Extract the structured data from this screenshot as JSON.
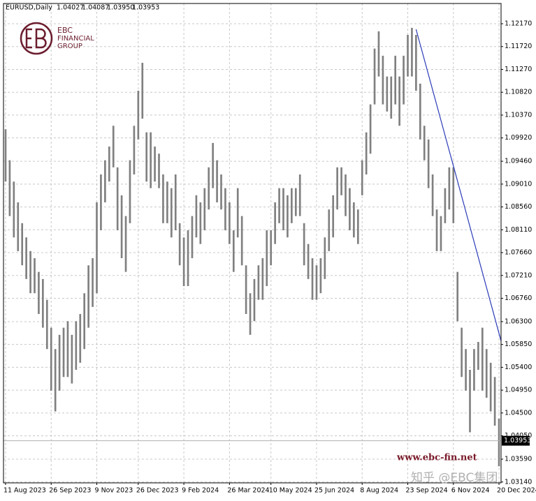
{
  "chart_data": {
    "type": "ohlc",
    "symbol": "EURUSD,Daily",
    "last": {
      "open": 1.04027,
      "high": 1.04087,
      "low": {
        "value": 1.0395,
        "label": "1.03950"
      },
      "close": 1.03953
    },
    "logo": {
      "line1": "EBC",
      "line2": "FINANCIAL",
      "line3": "GROUP"
    },
    "watermark": "www.ebc-fin.net",
    "credit": "知乎 @EBC集团",
    "color": "#808080",
    "trendline_color": "#2b3bb8",
    "grid": true,
    "categories": [
      "11 Aug 2023",
      null,
      null,
      null,
      null,
      null,
      null,
      null,
      null,
      null,
      null,
      "26 Sep 2023",
      null,
      null,
      null,
      null,
      null,
      null,
      null,
      null,
      null,
      null,
      "9 Nov 2023",
      null,
      null,
      null,
      null,
      null,
      null,
      null,
      null,
      null,
      "26 Dec 2023",
      null,
      null,
      null,
      null,
      null,
      null,
      null,
      null,
      null,
      null,
      "9 Feb 2024",
      null,
      null,
      null,
      null,
      null,
      null,
      null,
      null,
      null,
      null,
      "26 Mar 2024",
      null,
      null,
      null,
      null,
      null,
      null,
      null,
      null,
      null,
      "10 May 2024",
      null,
      null,
      null,
      null,
      null,
      null,
      null,
      null,
      null,
      null,
      "25 Jun 2024",
      null,
      null,
      null,
      null,
      null,
      null,
      null,
      null,
      null,
      null,
      "8 Aug 2024",
      null,
      null,
      null,
      null,
      null,
      null,
      null,
      null,
      null,
      null,
      "23 Sep 2024",
      null,
      null,
      null,
      null,
      null,
      null,
      null,
      null,
      null,
      null,
      "6 Nov 2024",
      null,
      null,
      null,
      null,
      null,
      null,
      null,
      null,
      null,
      null,
      "20 Dec 2024"
    ],
    "high": [
      1.1009,
      1.0948,
      1.0906,
      1.0865,
      1.0824,
      1.0796,
      1.0769,
      1.0755,
      1.0728,
      1.0714,
      1.0673,
      1.0618,
      1.0576,
      1.0604,
      1.0618,
      1.0631,
      1.0604,
      1.0631,
      1.0645,
      1.0686,
      1.0741,
      1.0755,
      1.0865,
      1.092,
      1.0948,
      1.0975,
      1.1016,
      1.0934,
      1.0879,
      1.0838,
      1.0948,
      1.1016,
      1.1085,
      1.114,
      1.1003,
      1.1003,
      1.0975,
      1.0961,
      1.092,
      1.0906,
      1.0893,
      1.092,
      1.0824,
      1.0796,
      1.081,
      1.0838,
      1.0879,
      1.0865,
      1.0893,
      1.0934,
      1.0982,
      1.0948,
      1.092,
      1.0893,
      1.0865,
      1.081,
      1.0893,
      1.0838,
      1.0741,
      1.0686,
      1.0714,
      1.0741,
      1.0755,
      1.081,
      1.081,
      1.0865,
      1.0893,
      1.0893,
      1.0879,
      1.0893,
      1.0893,
      1.092,
      1.0824,
      1.0783,
      1.0755,
      1.0741,
      1.0755,
      1.0796,
      1.0851,
      1.0879,
      1.0934,
      1.0934,
      1.092,
      1.0893,
      1.0865,
      1.0851,
      1.0948,
      1.1003,
      1.1058,
      1.1168,
      1.1202,
      1.1154,
      1.1113,
      1.1113,
      1.1154,
      1.1113,
      1.1154,
      1.1195,
      1.1209,
      1.1195,
      1.1099,
      1.1016,
      1.0989,
      1.092,
      1.0851,
      1.0838,
      1.0893,
      1.0934,
      1.0934,
      1.0728,
      1.0618,
      1.0576,
      1.0535,
      1.0576,
      1.059,
      1.0618,
      1.0576,
      1.0549,
      1.0521,
      1.0439
    ],
    "low": [
      1.0906,
      1.0838,
      1.0796,
      1.0769,
      1.0741,
      1.0714,
      1.0686,
      1.0686,
      1.0645,
      1.0618,
      1.0576,
      1.0494,
      1.0453,
      1.0494,
      1.0521,
      1.0521,
      1.0508,
      1.0535,
      1.0549,
      1.0576,
      1.0618,
      1.0659,
      1.0686,
      1.081,
      1.0865,
      1.0906,
      1.0934,
      1.081,
      1.0755,
      1.0728,
      1.0824,
      1.092,
      1.0989,
      1.103,
      1.0906,
      1.0893,
      1.0906,
      1.0893,
      1.0824,
      1.0824,
      1.0796,
      1.081,
      1.0741,
      1.07,
      1.07,
      1.0755,
      1.0796,
      1.0783,
      1.081,
      1.0851,
      1.0893,
      1.0865,
      1.0851,
      1.081,
      1.0783,
      1.0728,
      1.0796,
      1.0741,
      1.0645,
      1.0604,
      1.0631,
      1.0673,
      1.0673,
      1.07,
      1.0741,
      1.0783,
      1.0824,
      1.081,
      1.0796,
      1.0824,
      1.0838,
      1.0838,
      1.0741,
      1.0714,
      1.0673,
      1.0673,
      1.0686,
      1.0714,
      1.0769,
      1.0796,
      1.0851,
      1.0879,
      1.0838,
      1.081,
      1.0796,
      1.0783,
      1.0879,
      1.092,
      1.0961,
      1.1058,
      1.1113,
      1.1058,
      1.1044,
      1.103,
      1.1058,
      1.1016,
      1.1058,
      1.1113,
      1.1113,
      1.1085,
      1.0989,
      1.0948,
      1.0893,
      1.0838,
      1.0769,
      1.0769,
      1.0824,
      1.0851,
      1.0824,
      1.0631,
      1.0521,
      1.0494,
      1.0412,
      1.0494,
      1.0535,
      1.0494,
      1.048,
      1.0453,
      1.0425,
      1.0345
    ],
    "trendline": {
      "x": [
        99,
        108,
        120.6
      ],
      "y": [
        1.1206,
        1.0937,
        1.0559
      ]
    },
    "ylim": [
      1.03123,
      1.12569
    ],
    "yticks": [
      {
        "value": 1.1217,
        "label": "1.12170"
      },
      {
        "value": 1.1172,
        "label": "1.11720"
      },
      {
        "value": 1.1127,
        "label": "1.11270"
      },
      {
        "value": 1.1082,
        "label": "1.10820"
      },
      {
        "value": 1.1037,
        "label": "1.10370"
      },
      {
        "value": 1.0992,
        "label": "1.09920"
      },
      {
        "value": 1.0946,
        "label": "1.09460"
      },
      {
        "value": 1.0901,
        "label": "1.09010"
      },
      {
        "value": 1.0856,
        "label": "1.08560"
      },
      {
        "value": 1.0811,
        "label": "1.08110"
      },
      {
        "value": 1.0766,
        "label": "1.07660"
      },
      {
        "value": 1.0721,
        "label": "1.07210"
      },
      {
        "value": 1.0676,
        "label": "1.06760"
      },
      {
        "value": 1.063,
        "label": "1.06300"
      },
      {
        "value": 1.0585,
        "label": "1.05850"
      },
      {
        "value": 1.054,
        "label": "1.05400"
      },
      {
        "value": 1.0495,
        "label": "1.04950"
      },
      {
        "value": 1.045,
        "label": "1.04500"
      },
      {
        "value": 1.0405,
        "label": "1.04050"
      },
      {
        "value": 1.0359,
        "label": "1.03590"
      },
      {
        "value": 1.0314,
        "label": "1.03140"
      }
    ]
  }
}
